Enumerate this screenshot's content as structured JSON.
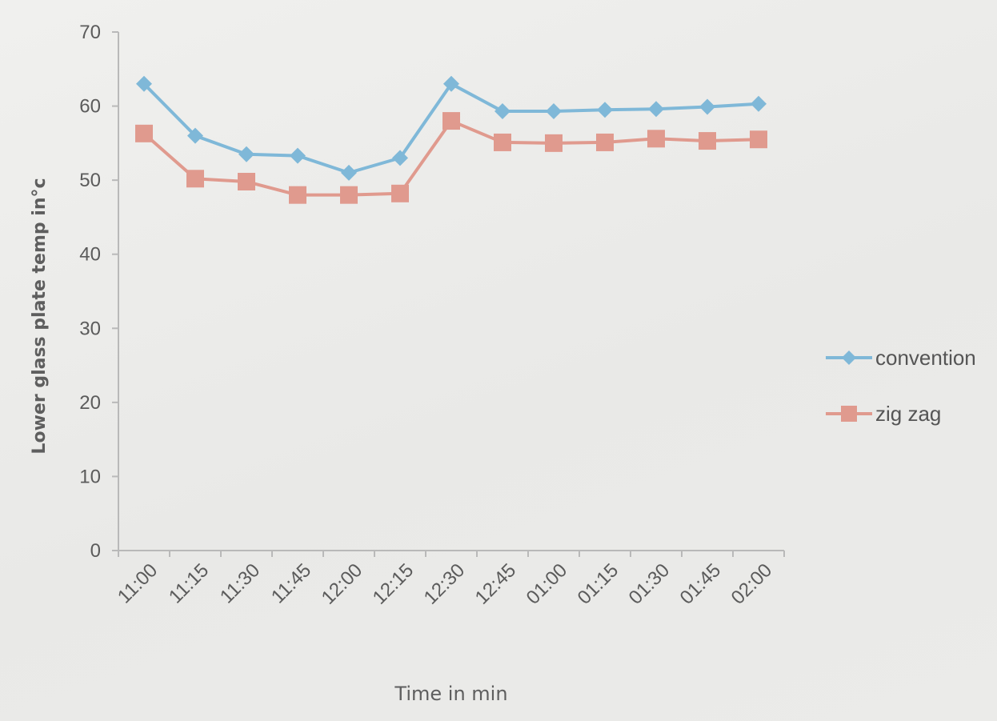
{
  "chart_data": {
    "type": "line",
    "title": "",
    "xlabel": "Time in min",
    "ylabel": "Lower glass plate temp in°c",
    "categories": [
      "11:00",
      "11:15",
      "11:30",
      "11:45",
      "12:00",
      "12:15",
      "12:30",
      "12:45",
      "01:00",
      "01:15",
      "01:30",
      "01:45",
      "02:00"
    ],
    "ylim": [
      0,
      70
    ],
    "yticks": [
      "0",
      "10",
      "20",
      "30",
      "40",
      "50",
      "60",
      "70"
    ],
    "grid": false,
    "legend_position": "right",
    "series": [
      {
        "name": "convention",
        "marker": "diamond",
        "color": "#7fb8d8",
        "values": [
          63,
          56,
          53.5,
          53.3,
          51,
          53,
          63,
          59.3,
          59.3,
          59.5,
          59.6,
          59.9,
          60.3
        ]
      },
      {
        "name": "zig zag",
        "marker": "square",
        "color": "#e09a8e",
        "values": [
          56.3,
          50.2,
          49.8,
          48,
          48,
          48.2,
          58,
          55.1,
          55,
          55.1,
          55.6,
          55.3,
          55.5
        ]
      }
    ]
  }
}
